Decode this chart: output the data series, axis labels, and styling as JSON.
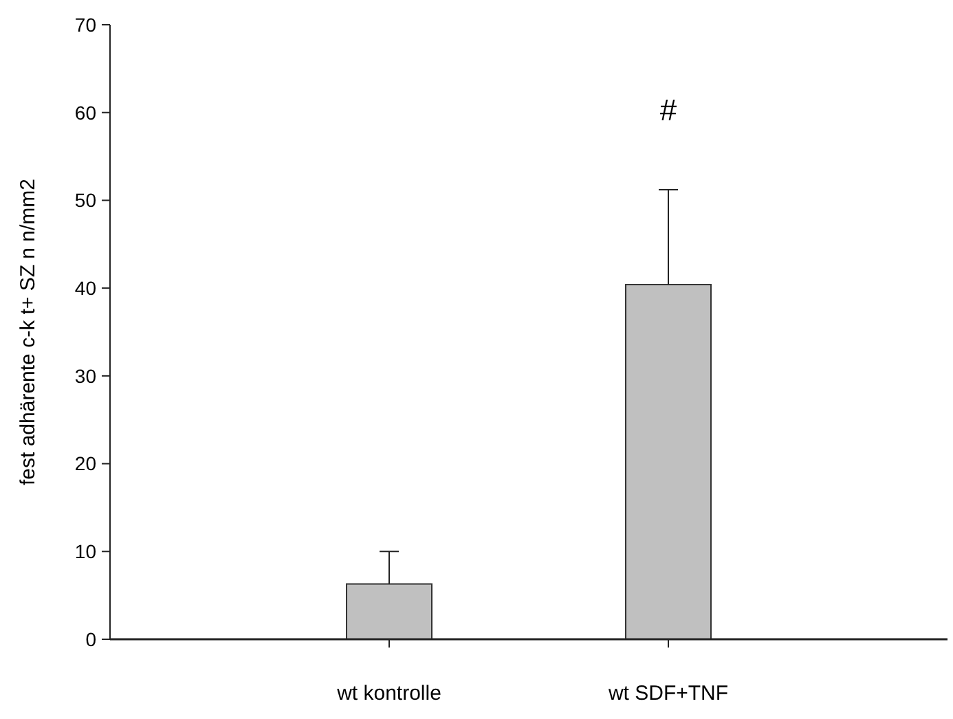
{
  "chart_data": {
    "type": "bar",
    "ylabel": "fest adhärente c-k t+ SZ  n n/mm2",
    "categories": [
      "wt kontrolle",
      "wt SDF+TNF"
    ],
    "values": [
      6.3,
      40.4
    ],
    "errors": [
      [
        6.3,
        10.0
      ],
      [
        40.4,
        51.2
      ]
    ],
    "color": "#c0c0c0",
    "ylim": [
      0,
      70
    ],
    "yticks": [
      0,
      10,
      20,
      30,
      40,
      50,
      60,
      70
    ],
    "grid": false,
    "annotations": [
      "#"
    ]
  }
}
